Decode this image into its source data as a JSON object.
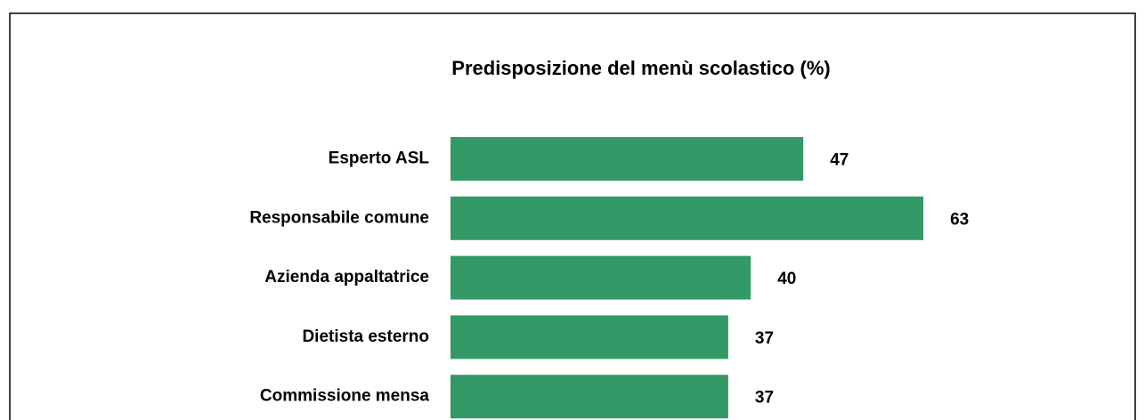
{
  "chart_data": {
    "type": "bar",
    "orientation": "horizontal",
    "title": "Predisposizione del menù scolastico (%)",
    "categories": [
      "Esperto ASL",
      "Responsabile comune",
      "Azienda appaltatrice",
      "Dietista esterno",
      "Commissione mensa"
    ],
    "values": [
      47,
      63,
      40,
      37,
      37
    ],
    "color": "#339966"
  }
}
